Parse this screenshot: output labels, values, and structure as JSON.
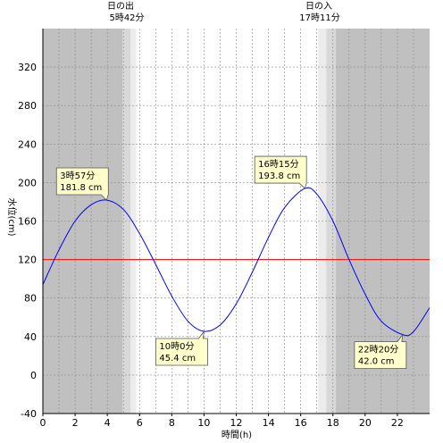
{
  "header": {
    "sunrise_label": "日の出",
    "sunrise_time": "5時42分",
    "sunset_label": "日の入",
    "sunset_time": "17時11分"
  },
  "colors": {
    "night": "#c0c0c0",
    "twilight_dark": "#d8d8d8",
    "twilight_light": "#ececec",
    "day": "#ffffff",
    "tide_line": "#0000ff",
    "reference_line": "#ff0000",
    "grid": "#888888"
  },
  "chart_data": {
    "type": "line",
    "title": "",
    "xlabel": "時間(h)",
    "ylabel": "水位(cm)",
    "xlim": [
      0,
      24
    ],
    "ylim": [
      -40,
      360
    ],
    "xticks": [
      0,
      2,
      4,
      6,
      8,
      10,
      12,
      14,
      16,
      18,
      20,
      22
    ],
    "yticks": [
      -40,
      0,
      40,
      80,
      120,
      160,
      200,
      240,
      280,
      320
    ],
    "grid": true,
    "reference_line": 120,
    "sunrise_hours": 5.7,
    "sunset_hours": 17.183,
    "series": [
      {
        "x": [
          0,
          1,
          2,
          3,
          3.95,
          5,
          6,
          7,
          8,
          9,
          10,
          11,
          12,
          13,
          14,
          15,
          16.25,
          17,
          18,
          19,
          20,
          21,
          22.33,
          23,
          24
        ],
        "y": [
          94,
          130,
          160,
          177,
          181.8,
          172,
          147,
          115,
          82,
          56,
          45.4,
          52,
          74,
          107,
          143,
          174,
          193.8,
          188,
          160,
          120,
          84,
          56,
          42.0,
          45,
          70
        ]
      }
    ],
    "annotations": [
      {
        "time": "3時57分",
        "level": "181.8 cm",
        "x": 3.95,
        "y": 181.8,
        "type": "high"
      },
      {
        "time": "10時0分",
        "level": "45.4 cm",
        "x": 10.0,
        "y": 45.4,
        "type": "low"
      },
      {
        "time": "16時15分",
        "level": "193.8 cm",
        "x": 16.25,
        "y": 193.8,
        "type": "high"
      },
      {
        "time": "22時20分",
        "level": "42.0 cm",
        "x": 22.33,
        "y": 42.0,
        "type": "low"
      }
    ]
  }
}
